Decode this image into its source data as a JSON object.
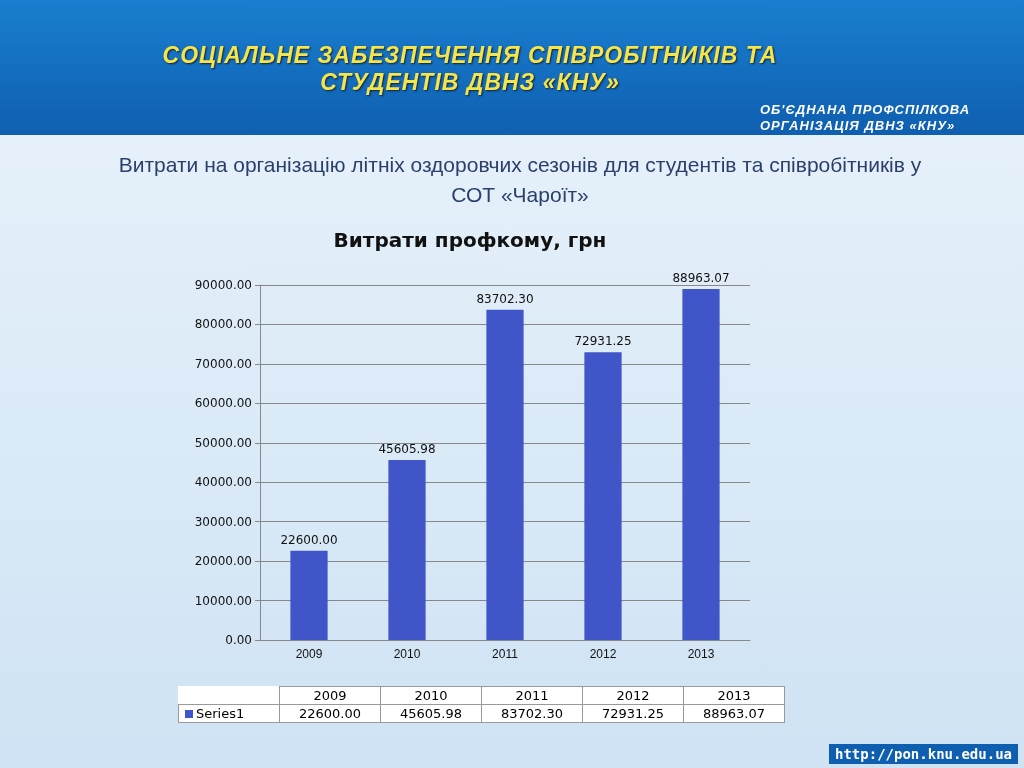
{
  "chart_data": {
    "type": "bar",
    "title": "Витрати профкому, грн",
    "subtitle": "Витрати на організацію літніх оздоровчих сезонів для студентів та співробітників у СОТ «Чароїт»",
    "annotations": [
      "СОЦІАЛЬНЕ ЗАБЕЗПЕЧЕННЯ СПІВРОБІТНИКІВ ТА СТУДЕНТІВ ДВНЗ «КНУ»",
      "ОБ'ЄДНАНА ПРОФСПІЛКОВА ОРГАНІЗАЦІЯ ДВНЗ «КНУ»",
      "http://pon.knu.edu.ua"
    ],
    "categories": [
      "2009",
      "2010",
      "2011",
      "2012",
      "2013"
    ],
    "series": [
      {
        "name": "Series1",
        "color": "#4055c8",
        "values": [
          22600,
          45605.98,
          83702.3,
          72931.25,
          88963.07
        ],
        "value_labels": [
          "22600.00",
          "45605.98",
          "83702.30",
          "72931.25",
          "88963.07"
        ]
      }
    ],
    "ylim": [
      0,
      90000
    ],
    "yticks": [
      {
        "value": 0,
        "label": "0.00"
      },
      {
        "value": 10000,
        "label": "10000.00"
      },
      {
        "value": 20000,
        "label": "20000.00"
      },
      {
        "value": 30000,
        "label": "30000.00"
      },
      {
        "value": 40000,
        "label": "40000.00"
      },
      {
        "value": 50000,
        "label": "50000.00"
      },
      {
        "value": 60000,
        "label": "60000.00"
      },
      {
        "value": 70000,
        "label": "70000.00"
      },
      {
        "value": 80000,
        "label": "80000.00"
      },
      {
        "value": 90000,
        "label": "90000.00"
      }
    ],
    "grid": "y"
  }
}
